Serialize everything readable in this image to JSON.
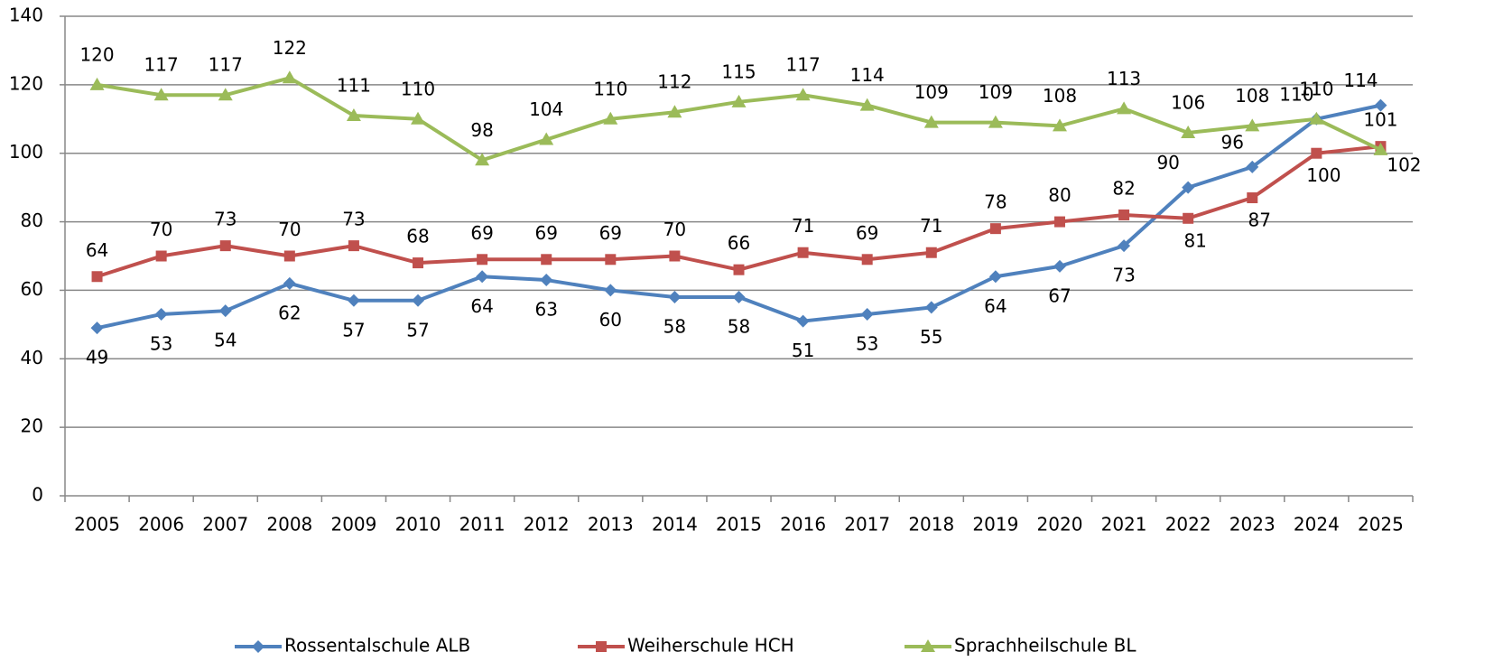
{
  "chart_data": {
    "type": "line",
    "categories": [
      "2005",
      "2006",
      "2007",
      "2008",
      "2009",
      "2010",
      "2011",
      "2012",
      "2013",
      "2014",
      "2015",
      "2016",
      "2017",
      "2018",
      "2019",
      "2020",
      "2021",
      "2022",
      "2023",
      "2024",
      "2025"
    ],
    "series": [
      {
        "name": "Rossentalschule ALB",
        "color": "#4f81bd",
        "values": [
          49,
          53,
          54,
          62,
          57,
          57,
          64,
          63,
          60,
          58,
          58,
          51,
          53,
          55,
          64,
          67,
          73,
          90,
          96,
          110,
          114
        ]
      },
      {
        "name": "Weiherschule HCH",
        "color": "#c0504d",
        "values": [
          64,
          70,
          73,
          70,
          73,
          68,
          69,
          69,
          69,
          70,
          66,
          71,
          69,
          71,
          78,
          80,
          82,
          81,
          87,
          100,
          102
        ]
      },
      {
        "name": "Sprachheilschule BL",
        "color": "#9bbb59",
        "values": [
          120,
          117,
          117,
          122,
          111,
          110,
          98,
          104,
          110,
          112,
          115,
          117,
          114,
          109,
          109,
          108,
          113,
          106,
          108,
          110,
          101
        ]
      }
    ],
    "ylim": [
      0,
      140
    ],
    "yticks": [
      0,
      20,
      40,
      60,
      80,
      100,
      120,
      140
    ],
    "grid": true,
    "legend": "bottom"
  }
}
